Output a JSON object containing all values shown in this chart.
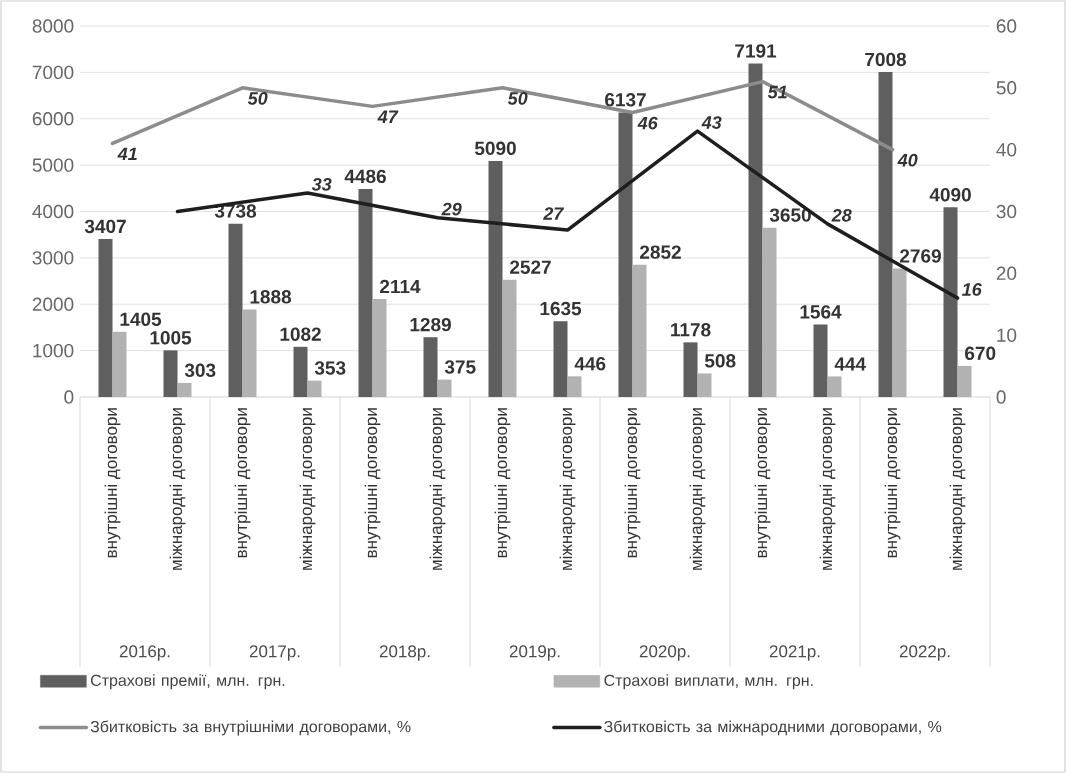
{
  "chart_data": {
    "type": "bar",
    "categories": [
      "внутрішні договори",
      "міжнародні договори",
      "внутрішні договори",
      "міжнародні договори",
      "внутрішні договори",
      "міжнародні договори",
      "внутрішні договори",
      "міжнародні договори",
      "внутрішні договори",
      "міжнародні договори",
      "внутрішні договори",
      "міжнародні договори",
      "внутрішні договори",
      "міжнародні договори"
    ],
    "series": [
      {
        "name": "Страхові премії, млн. грн.",
        "type": "bar",
        "color": "#5f5f5f",
        "values": [
          3407,
          1005,
          3738,
          1082,
          4486,
          1289,
          5090,
          1635,
          6137,
          1178,
          7191,
          1564,
          7008,
          4090
        ]
      },
      {
        "name": "Страхові виплати, млн. грн.",
        "type": "bar",
        "color": "#b2b2b2",
        "values": [
          1405,
          303,
          1888,
          353,
          2114,
          375,
          2527,
          446,
          2852,
          508,
          3650,
          444,
          2769,
          670
        ]
      },
      {
        "name": "Збитковість за внутрішніми договорами, %",
        "type": "line",
        "axis": "y2",
        "color": "#8c8c8c",
        "values": [
          41,
          null,
          50,
          null,
          47,
          null,
          50,
          null,
          46,
          null,
          51,
          null,
          40,
          null
        ]
      },
      {
        "name": "Збитковість за міжнародними договорами, %",
        "type": "line",
        "axis": "y2",
        "color": "#1e1e1e",
        "values": [
          null,
          30,
          null,
          33,
          null,
          29,
          null,
          27,
          null,
          43,
          null,
          28,
          null,
          16
        ],
        "value_labels": [
          null,
          null,
          null,
          "33",
          null,
          "29",
          null,
          "27",
          null,
          "43",
          null,
          "28",
          null,
          "16"
        ]
      }
    ],
    "ylim": [
      0,
      8000
    ],
    "yticks": [
      0,
      1000,
      2000,
      3000,
      4000,
      5000,
      6000,
      7000,
      8000
    ],
    "y2lim": [
      0,
      60
    ],
    "y2ticks": [
      0,
      10,
      20,
      30,
      40,
      50,
      60
    ],
    "grid": "y",
    "data_labels": true,
    "legend": "bottom",
    "marker": "none",
    "line_style": "solid",
    "annotations": [
      "2016р.",
      "2017р.",
      "2018р.",
      "2019р.",
      "2020р.",
      "2021р.",
      "2022р."
    ]
  }
}
